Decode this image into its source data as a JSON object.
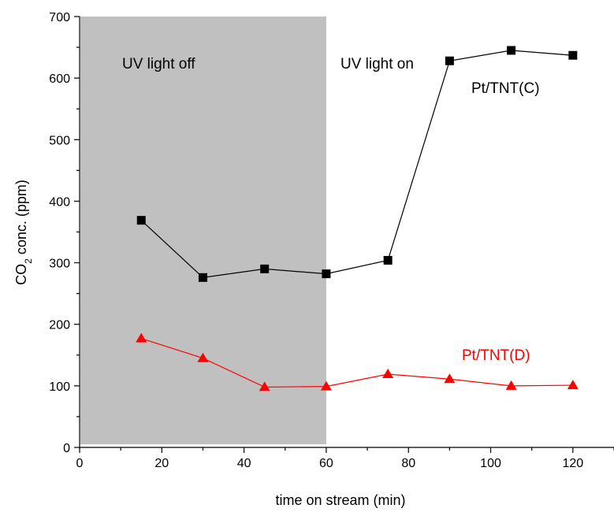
{
  "chart_data": {
    "type": "line",
    "xlabel": "time on stream (min)",
    "ylabel_parts": [
      "CO",
      "2",
      " conc. (ppm)"
    ],
    "xlim": [
      0,
      130
    ],
    "ylim": [
      0,
      700
    ],
    "xticks": [
      "0",
      "20",
      "40",
      "60",
      "80",
      "100",
      "120"
    ],
    "yticks": [
      "0",
      "100",
      "200",
      "300",
      "400",
      "500",
      "600",
      "700"
    ],
    "shaded_region": {
      "x": [
        0,
        60
      ],
      "color": "#c0c0c0"
    },
    "annotations": {
      "uv_off": "UV light off",
      "uv_on": "UV light on"
    },
    "series": [
      {
        "name": "Pt/TNT(C)",
        "color": "#000000",
        "marker": "square",
        "x": [
          15,
          30,
          45,
          60,
          75,
          90,
          105,
          120
        ],
        "y": [
          369,
          276,
          290,
          282,
          304,
          628,
          645,
          637
        ]
      },
      {
        "name": "Pt/TNT(D)",
        "color": "#ff0000",
        "marker": "triangle",
        "x": [
          15,
          30,
          45,
          60,
          75,
          90,
          105,
          120
        ],
        "y": [
          177,
          145,
          98,
          99,
          119,
          111,
          100,
          101
        ]
      }
    ]
  }
}
